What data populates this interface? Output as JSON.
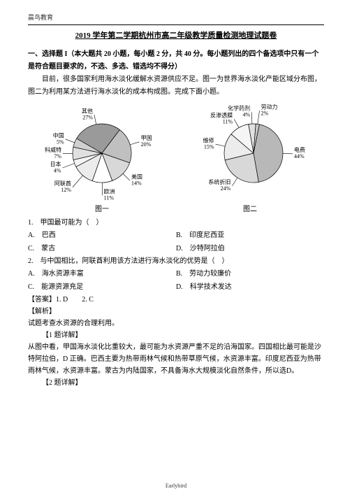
{
  "brand": "晨鸟教育",
  "title": "2019 学年第二学期杭州市高二年级教学质量检测地理试题卷",
  "section1": "一、选择题 I（本大题共 20 小题，每小题 2 分，共 40 分。每小题列出的四个备选项中只有一个是符合题目要求的，不选、多选、错选均不得分）",
  "intro": "目前，很多国家利用海水淡化缓解水资源供应不足。图一为世界海水淡化产能区域分布图，图二为利用某方法进行海水淡化的成本构成图。完成下面小题。",
  "chart1": {
    "type": "pie",
    "caption": "图一",
    "slices": [
      {
        "label": "其他",
        "value": 27,
        "color": "#9a9a9a",
        "text": "其他\n27%"
      },
      {
        "label": "甲国",
        "value": 20,
        "color": "#c0c0c0",
        "text": "甲国\n20%"
      },
      {
        "label": "美国",
        "value": 14,
        "color": "#d8d8d8",
        "text": "美国\n14%"
      },
      {
        "label": "欧洲",
        "value": 11,
        "color": "#ffffff",
        "text": "欧洲\n11%"
      },
      {
        "label": "阿联酋",
        "value": 12,
        "color": "#ececec",
        "text": "阿联酋\n12%"
      },
      {
        "label": "日本",
        "value": 4,
        "color": "#f5f5f5",
        "text": "日本\n4%"
      },
      {
        "label": "科威特",
        "value": 7,
        "color": "#e0e0e0",
        "text": "科威特\n7%"
      },
      {
        "label": "中国",
        "value": 5,
        "color": "#d0d0d0",
        "text": "中国\n5%"
      }
    ],
    "label_fontsize": 8
  },
  "chart2": {
    "type": "pie",
    "caption": "图二",
    "slices": [
      {
        "label": "化学药剂",
        "value": 4,
        "color": "#e0e0e0",
        "text": "化学药剂\n4%"
      },
      {
        "label": "劳动力",
        "value": 2,
        "color": "#c8c8c8",
        "text": "劳动力\n2%"
      },
      {
        "label": "电费",
        "value": 44,
        "color": "#b8b8b8",
        "text": "电费\n44%"
      },
      {
        "label": "系统折旧",
        "value": 24,
        "color": "#d8d8d8",
        "text": "系统折旧\n24%"
      },
      {
        "label": "维修",
        "value": 15,
        "color": "#ececec",
        "text": "维修\n15%"
      },
      {
        "label": "反渗透膜",
        "value": 11,
        "color": "#f5f5f5",
        "text": "反渗透膜\n11%"
      }
    ],
    "label_fontsize": 8
  },
  "q1": {
    "stem": "1.　甲国最可能为（　）",
    "A": "A.　巴西",
    "B": "B.　印度尼西亚",
    "C": "C.　蒙古",
    "D": "D.　沙特阿拉伯"
  },
  "q2": {
    "stem": "2.　与中国相比，阿联酋利用该方法进行海水淡化的优势是（　）",
    "A": "A.　海水资源丰富",
    "B": "B.　劳动力较廉价",
    "C": "C.　能源资源充足",
    "D": "D.　科学技术发达"
  },
  "answer_line": "【答案】1. D　　2. C",
  "jiexi": "【解析】",
  "jiexi_body": "试题考查水资源的合理利用。",
  "q1_detail_head": "【1 题详解】",
  "q1_detail": "从图中看，甲国海水淡化比重较大，最可能为水资源严重不足的沿海国家。四国相比最可能是沙特阿拉伯，D 正确。巴西主要为热带雨林气候和热带草原气候，水资源丰富。印度尼西亚为热带雨林气候，水资源丰富。蒙古为内陆国家，不具备海水大规模淡化自然条件，所以选D。",
  "q2_detail_head": "【2 题详解】",
  "footer": "Earlybird"
}
